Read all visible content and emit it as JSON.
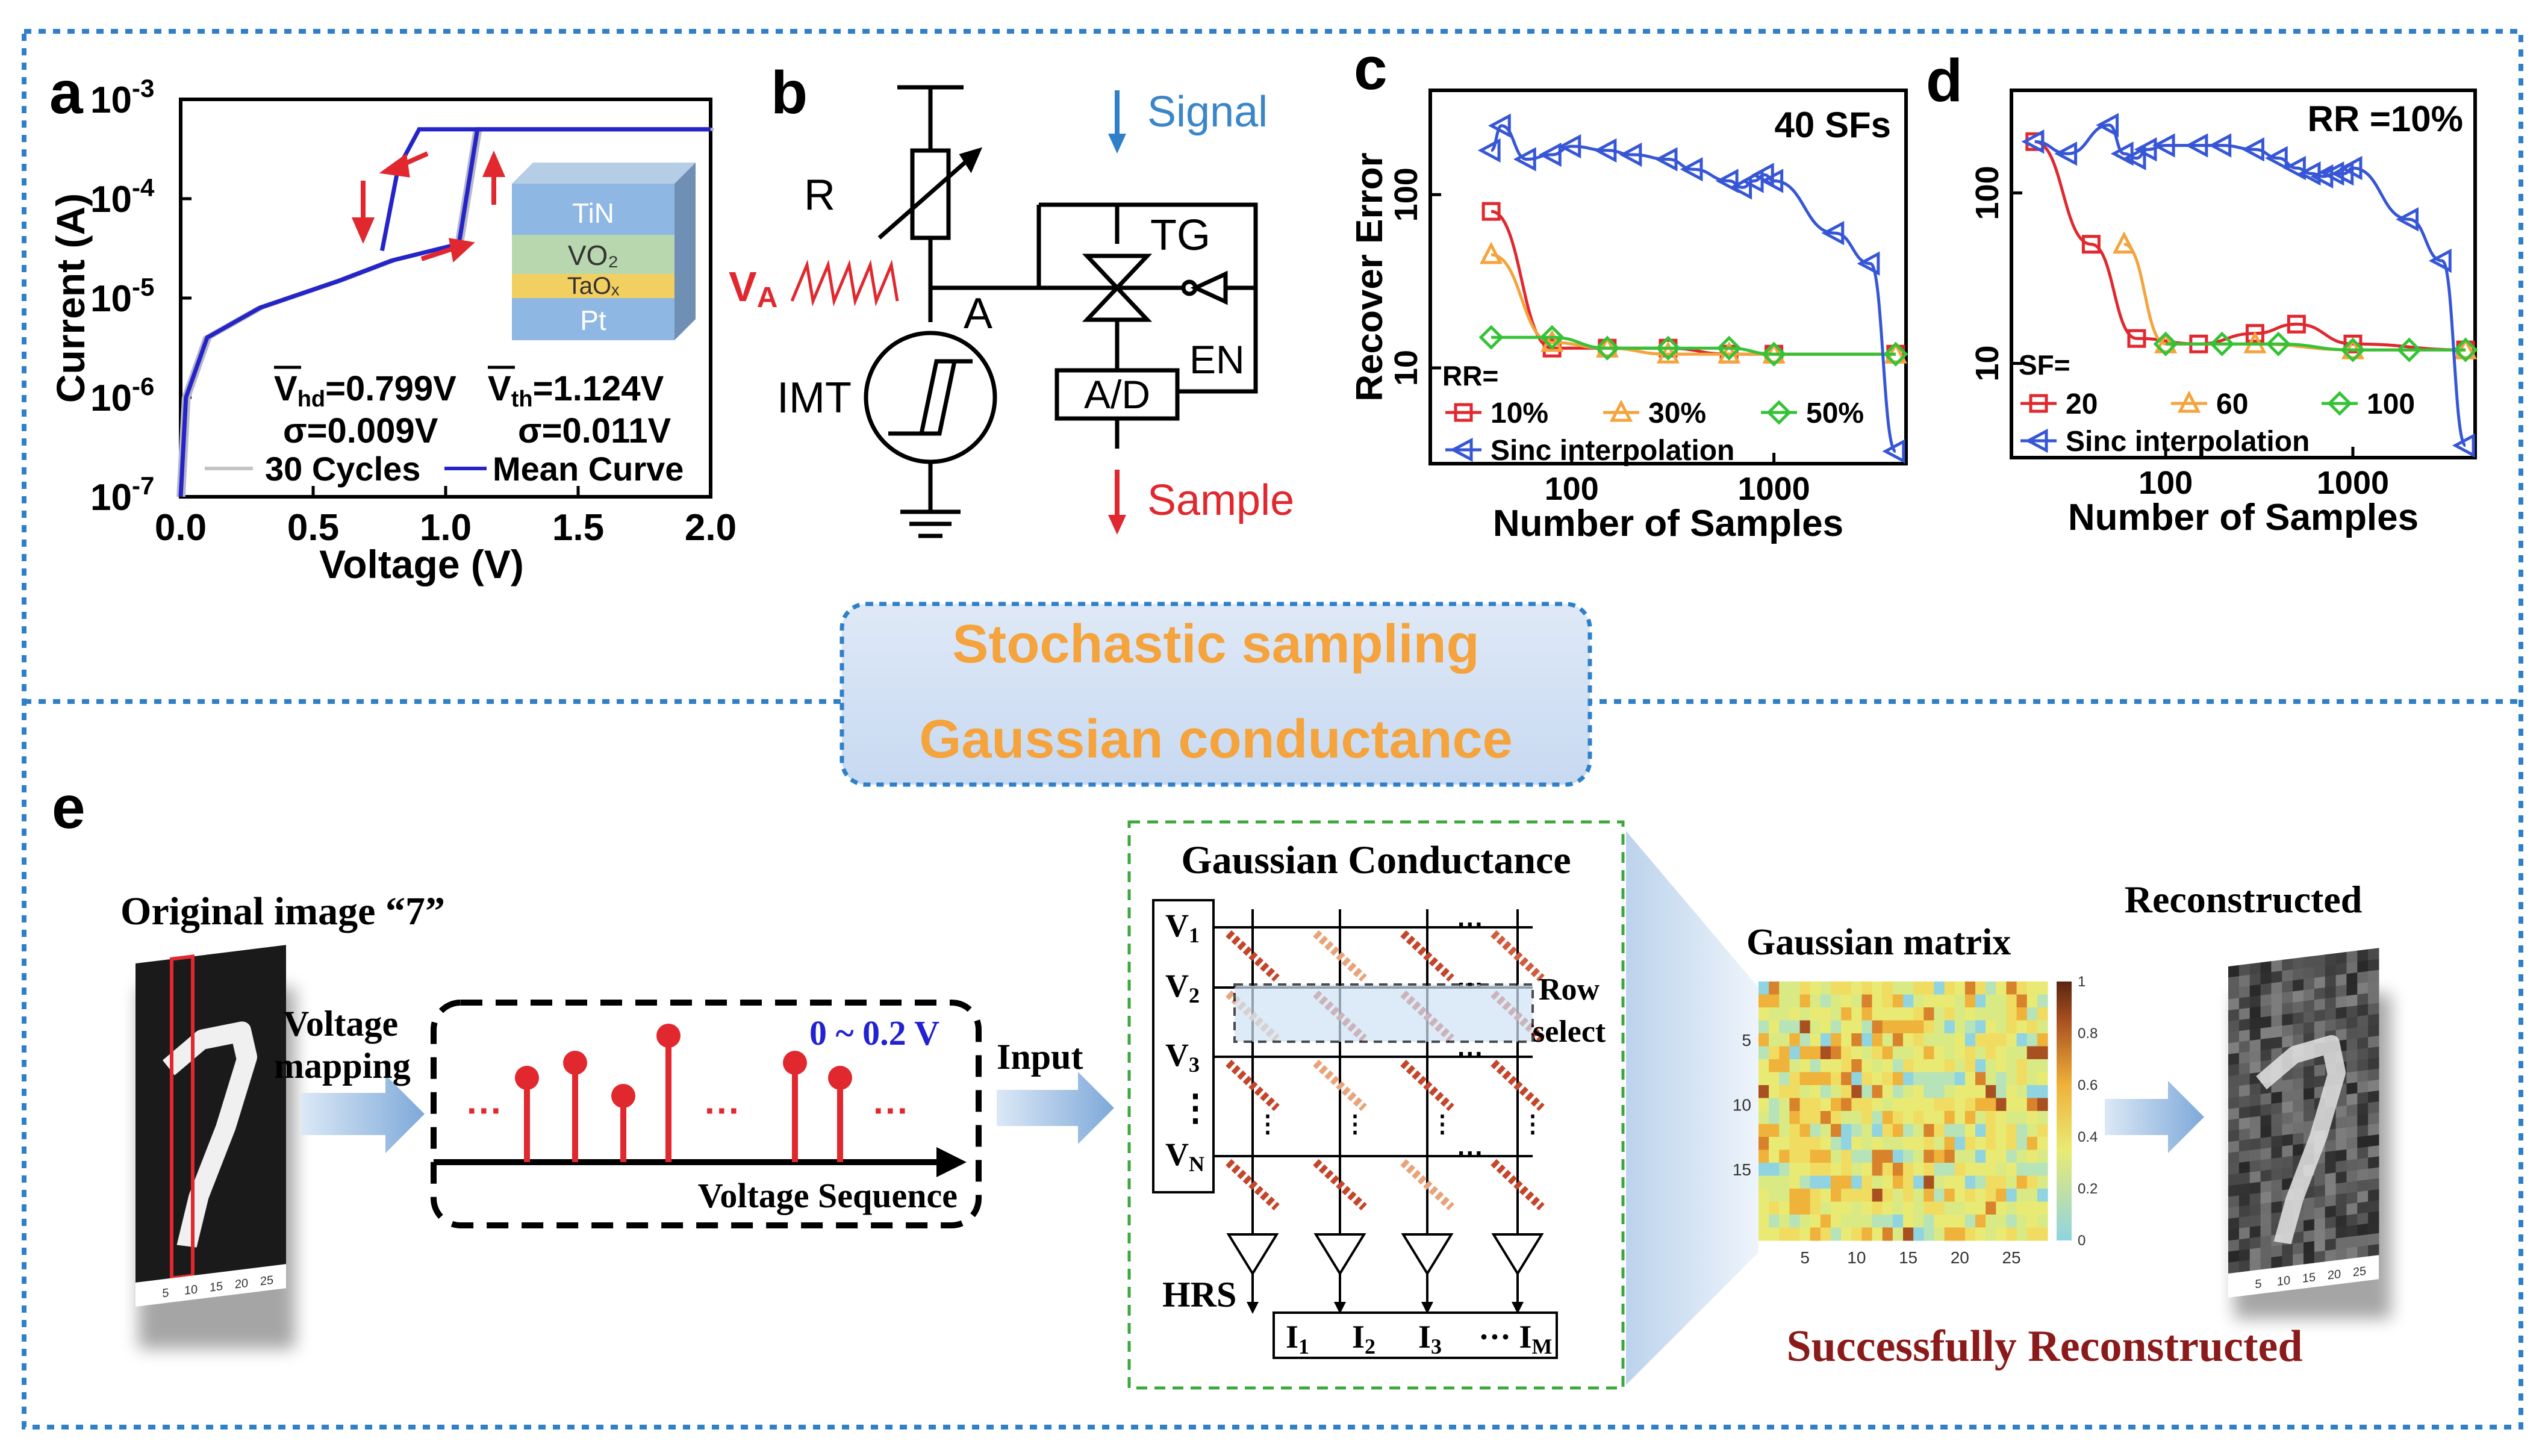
{
  "panel_labels": {
    "a": "a",
    "b": "b",
    "c": "c",
    "d": "d",
    "e": "e"
  },
  "banner": {
    "top": "Stochastic sampling",
    "bottom": "Gaussian conductance"
  },
  "colors": {
    "accent_orange": "#f5a33c",
    "border_blue": "#2f80c8",
    "red": "#e0282e",
    "blue": "#3656d6",
    "green": "#36c236",
    "dark_red": "#8b1a1a"
  },
  "chart_data": [
    {
      "id": "a",
      "type": "line",
      "ylabel": "Current (A)",
      "xlabel": "Voltage (V)",
      "xlim": [
        0,
        2.0
      ],
      "ylim_log": [
        1e-07,
        0.001
      ],
      "xticks": [
        "0.0",
        "0.5",
        "1.0",
        "1.5",
        "2.0"
      ],
      "yticks": [
        {
          "b": "10",
          "e": "-3"
        },
        {
          "b": "10",
          "e": "-4"
        },
        {
          "b": "10",
          "e": "-5"
        },
        {
          "b": "10",
          "e": "-6"
        },
        {
          "b": "10",
          "e": "-7"
        }
      ],
      "legend": [
        "30 Cycles",
        "Mean Curve"
      ],
      "stats": {
        "vhd": "=0.799V",
        "vth": "=1.124V",
        "sigma_hd": "σ=0.009V",
        "sigma_th": "σ=0.011V"
      },
      "stack_layers": [
        "TiN",
        "VO₂",
        "TaOₓ",
        "Pt"
      ],
      "series": [
        {
          "name": "Mean Curve",
          "x": [
            0.0,
            0.02,
            0.1,
            0.3,
            0.6,
            0.8,
            1.05,
            1.12,
            1.15,
            1.3,
            2.0
          ],
          "y": [
            1e-07,
            1e-06,
            4e-06,
            8e-06,
            1.5e-05,
            2.4e-05,
            3.5e-05,
            0.0005,
            0.0005,
            0.0005,
            0.0005
          ]
        }
      ]
    },
    {
      "id": "c",
      "type": "line",
      "title": "40 SFs",
      "xlabel": "Number of Samples",
      "ylabel": "Recover Error",
      "xticks": [
        "100",
        "1000"
      ],
      "yticks": [
        "100",
        "10"
      ],
      "legend_title": "RR=",
      "series": [
        {
          "name": "10%",
          "x": [
            40,
            80,
            150,
            300,
            600,
            1000,
            4000
          ],
          "y": [
            80,
            13,
            13,
            13,
            12,
            12,
            12
          ]
        },
        {
          "name": "30%",
          "x": [
            40,
            80,
            150,
            300,
            600,
            1000,
            4000
          ],
          "y": [
            45,
            14,
            13,
            12,
            12,
            12,
            12
          ]
        },
        {
          "name": "50%",
          "x": [
            40,
            80,
            150,
            300,
            600,
            1000,
            4000
          ],
          "y": [
            15,
            15,
            13,
            13,
            13,
            12,
            12
          ]
        },
        {
          "name": "Sinc interpolation",
          "x": [
            40,
            45,
            60,
            80,
            100,
            150,
            200,
            300,
            400,
            600,
            700,
            800,
            900,
            1000,
            2000,
            3000,
            4000
          ],
          "y": [
            180,
            250,
            160,
            170,
            190,
            180,
            170,
            160,
            140,
            120,
            110,
            120,
            130,
            120,
            60,
            40,
            3.3
          ]
        }
      ]
    },
    {
      "id": "d",
      "type": "line",
      "title": "RR =10%",
      "xlabel": "Number of Samples",
      "xticks": [
        "100",
        "1000"
      ],
      "yticks": [
        "100",
        "10"
      ],
      "legend_title": "SF=",
      "series": [
        {
          "name": "20",
          "x": [
            20,
            40,
            70,
            150,
            300,
            500,
            1000,
            4000
          ],
          "y": [
            200,
            50,
            14,
            13,
            15,
            17,
            13,
            12
          ]
        },
        {
          "name": "60",
          "x": [
            60,
            100,
            300,
            1000,
            4000
          ],
          "y": [
            50,
            13,
            13,
            12,
            12
          ]
        },
        {
          "name": "100",
          "x": [
            100,
            200,
            400,
            1000,
            2000,
            4000
          ],
          "y": [
            13,
            13,
            13,
            12,
            12,
            12
          ]
        },
        {
          "name": "Sinc interpolation",
          "x": [
            20,
            30,
            50,
            60,
            70,
            80,
            100,
            150,
            200,
            300,
            400,
            500,
            600,
            700,
            800,
            900,
            1000,
            2000,
            3000,
            4000
          ],
          "y": [
            200,
            170,
            250,
            170,
            160,
            180,
            190,
            190,
            190,
            180,
            160,
            140,
            130,
            125,
            130,
            130,
            140,
            70,
            40,
            3.3
          ]
        }
      ]
    }
  ],
  "circuit": {
    "resistor": "R",
    "node": "A",
    "va_main": "V",
    "va_sub": "A",
    "imt": "IMT",
    "tg": "TG",
    "ad": "A/D",
    "en": "EN",
    "signal": "Signal",
    "sample": "Sample"
  },
  "panel_e": {
    "original_title": "Original image “7”",
    "voltage_mapping": "Voltage\nmapping",
    "range": "0 ~ 0.2 V",
    "seq_label": "Voltage Sequence",
    "dots": "···",
    "input": "Input",
    "gc_title": "Gaussian Conductance",
    "rows": [
      {
        "b": "V",
        "s": "1"
      },
      {
        "b": "V",
        "s": "2"
      },
      {
        "b": "V",
        "s": "3"
      },
      {
        "b": "V",
        "s": "N"
      }
    ],
    "vdots": "⋮",
    "row_select": "Row\nselect",
    "hrs": "HRS",
    "outputs": [
      {
        "b": "I",
        "s": "1"
      },
      {
        "b": "I",
        "s": "2"
      },
      {
        "b": "I",
        "s": "3"
      },
      {
        "b": "··· I",
        "s": "M"
      }
    ],
    "gm_title": "Gaussian matrix",
    "gm_xticks": [
      "5",
      "10",
      "15",
      "20",
      "25"
    ],
    "gm_yticks": [
      "5",
      "10",
      "15"
    ],
    "cbar_ticks": [
      "1",
      "0.8",
      "0.6",
      "0.4",
      "0.2",
      "0"
    ],
    "reconstructed": "Reconstructed",
    "success": "Successfully Reconstructed",
    "mnist_ticks": [
      "5",
      "10",
      "15",
      "20",
      "25"
    ]
  }
}
